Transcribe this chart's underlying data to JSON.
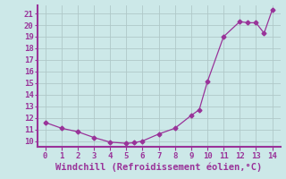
{
  "x": [
    0,
    1,
    2,
    3,
    4,
    5,
    5.5,
    6,
    7,
    8,
    9,
    9.5,
    10,
    11,
    12,
    12.5,
    13,
    13.5,
    14
  ],
  "y": [
    11.6,
    11.1,
    10.8,
    10.3,
    9.9,
    9.8,
    9.85,
    10.0,
    10.6,
    11.1,
    12.2,
    12.7,
    15.1,
    19.0,
    20.3,
    20.2,
    20.2,
    19.3,
    21.3
  ],
  "line_color": "#993399",
  "marker": "D",
  "marker_size": 2.5,
  "xlabel": "Windchill (Refroidissement éolien,°C)",
  "xlim": [
    -0.5,
    14.5
  ],
  "ylim": [
    9.5,
    21.7
  ],
  "xticks": [
    0,
    1,
    2,
    3,
    4,
    5,
    6,
    7,
    8,
    9,
    10,
    11,
    12,
    13,
    14
  ],
  "yticks": [
    10,
    11,
    12,
    13,
    14,
    15,
    16,
    17,
    18,
    19,
    20,
    21
  ],
  "bg_color": "#cce8e8",
  "grid_color": "#b0c8c8",
  "spine_color": "#993399",
  "tick_color": "#993399",
  "label_color": "#993399",
  "xlabel_fontsize": 7.5,
  "tick_fontsize": 6.5
}
